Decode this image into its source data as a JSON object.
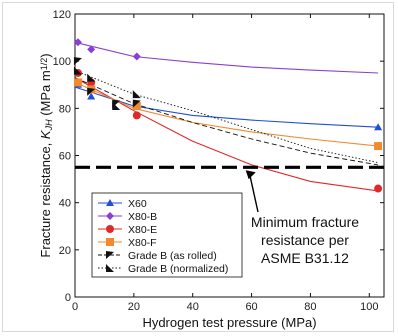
{
  "chart_data": {
    "type": "line",
    "xlabel": "Hydrogen test pressure  (MPa)",
    "ylabel": "Fracture resistance, K_JH (MPa m^1/2)",
    "ylabel_parts": {
      "prefix": "Fracture resistance, ",
      "k": "K",
      "sub": "JH",
      "units": " (MPa m",
      "sup": "1/2",
      "close": ")"
    },
    "xlim": [
      0,
      105
    ],
    "ylim": [
      0,
      120
    ],
    "x_ticks": [
      0,
      20,
      40,
      60,
      80,
      100
    ],
    "y_ticks": [
      0,
      20,
      40,
      60,
      80,
      100,
      120
    ],
    "grid": false,
    "legend_position": "lower-left",
    "series": [
      {
        "name": "X60",
        "color": "#1f4fd6",
        "marker": "triangle",
        "line": "solid",
        "points": [
          [
            1,
            90
          ],
          [
            5.5,
            85
          ],
          [
            21,
            81
          ],
          [
            103,
            72
          ]
        ],
        "fit": [
          [
            0,
            89
          ],
          [
            20,
            81
          ],
          [
            40,
            77
          ],
          [
            60,
            75
          ],
          [
            80,
            73.5
          ],
          [
            103,
            72
          ]
        ]
      },
      {
        "name": "X80-B",
        "color": "#8a3fd1",
        "marker": "diamond",
        "line": "solid",
        "points": [
          [
            1,
            108
          ],
          [
            5.5,
            105
          ],
          [
            21,
            102
          ]
        ],
        "fit": [
          [
            0,
            108
          ],
          [
            20,
            102
          ],
          [
            40,
            99.5
          ],
          [
            60,
            97.5
          ],
          [
            80,
            96.2
          ],
          [
            103,
            95
          ]
        ]
      },
      {
        "name": "X80-E",
        "color": "#e02828",
        "marker": "circle",
        "line": "solid",
        "points": [
          [
            1,
            95
          ],
          [
            5.5,
            91
          ],
          [
            21,
            77
          ],
          [
            103,
            46
          ]
        ],
        "fit": [
          [
            0,
            93
          ],
          [
            20,
            79
          ],
          [
            40,
            66
          ],
          [
            60,
            56
          ],
          [
            80,
            49
          ],
          [
            103,
            45
          ]
        ]
      },
      {
        "name": "X80-F",
        "color": "#f08a2c",
        "marker": "square",
        "line": "solid",
        "points": [
          [
            1,
            91
          ],
          [
            5.5,
            88
          ],
          [
            21,
            81
          ],
          [
            103,
            64
          ]
        ],
        "fit": [
          [
            0,
            91
          ],
          [
            20,
            80
          ],
          [
            40,
            74
          ],
          [
            60,
            70
          ],
          [
            80,
            67
          ],
          [
            103,
            64
          ]
        ]
      },
      {
        "name": "Grade B (as rolled)",
        "color": "#111111",
        "marker": "half-triangle",
        "line": "dashed",
        "points": [
          [
            1,
            100
          ],
          [
            5.5,
            87
          ],
          [
            14,
            82
          ],
          [
            21,
            82
          ]
        ],
        "fit": [
          [
            0,
            93
          ],
          [
            20,
            82
          ],
          [
            40,
            74
          ],
          [
            60,
            67
          ],
          [
            80,
            61
          ],
          [
            103,
            56
          ]
        ]
      },
      {
        "name": "Grade B (normalized)",
        "color": "#111111",
        "marker": "half-triangle",
        "line": "dotted",
        "points": [
          [
            1,
            96
          ],
          [
            5.5,
            93
          ],
          [
            14,
            81
          ],
          [
            21,
            86
          ]
        ],
        "fit": [
          [
            0,
            96
          ],
          [
            20,
            86
          ],
          [
            40,
            79
          ],
          [
            60,
            71
          ],
          [
            80,
            63
          ],
          [
            103,
            57
          ]
        ]
      }
    ],
    "threshold": {
      "y": 55,
      "label_lines": [
        "Minimum fracture",
        "resistance per",
        "ASME B31.12"
      ],
      "arrow_to_x": 58
    }
  }
}
